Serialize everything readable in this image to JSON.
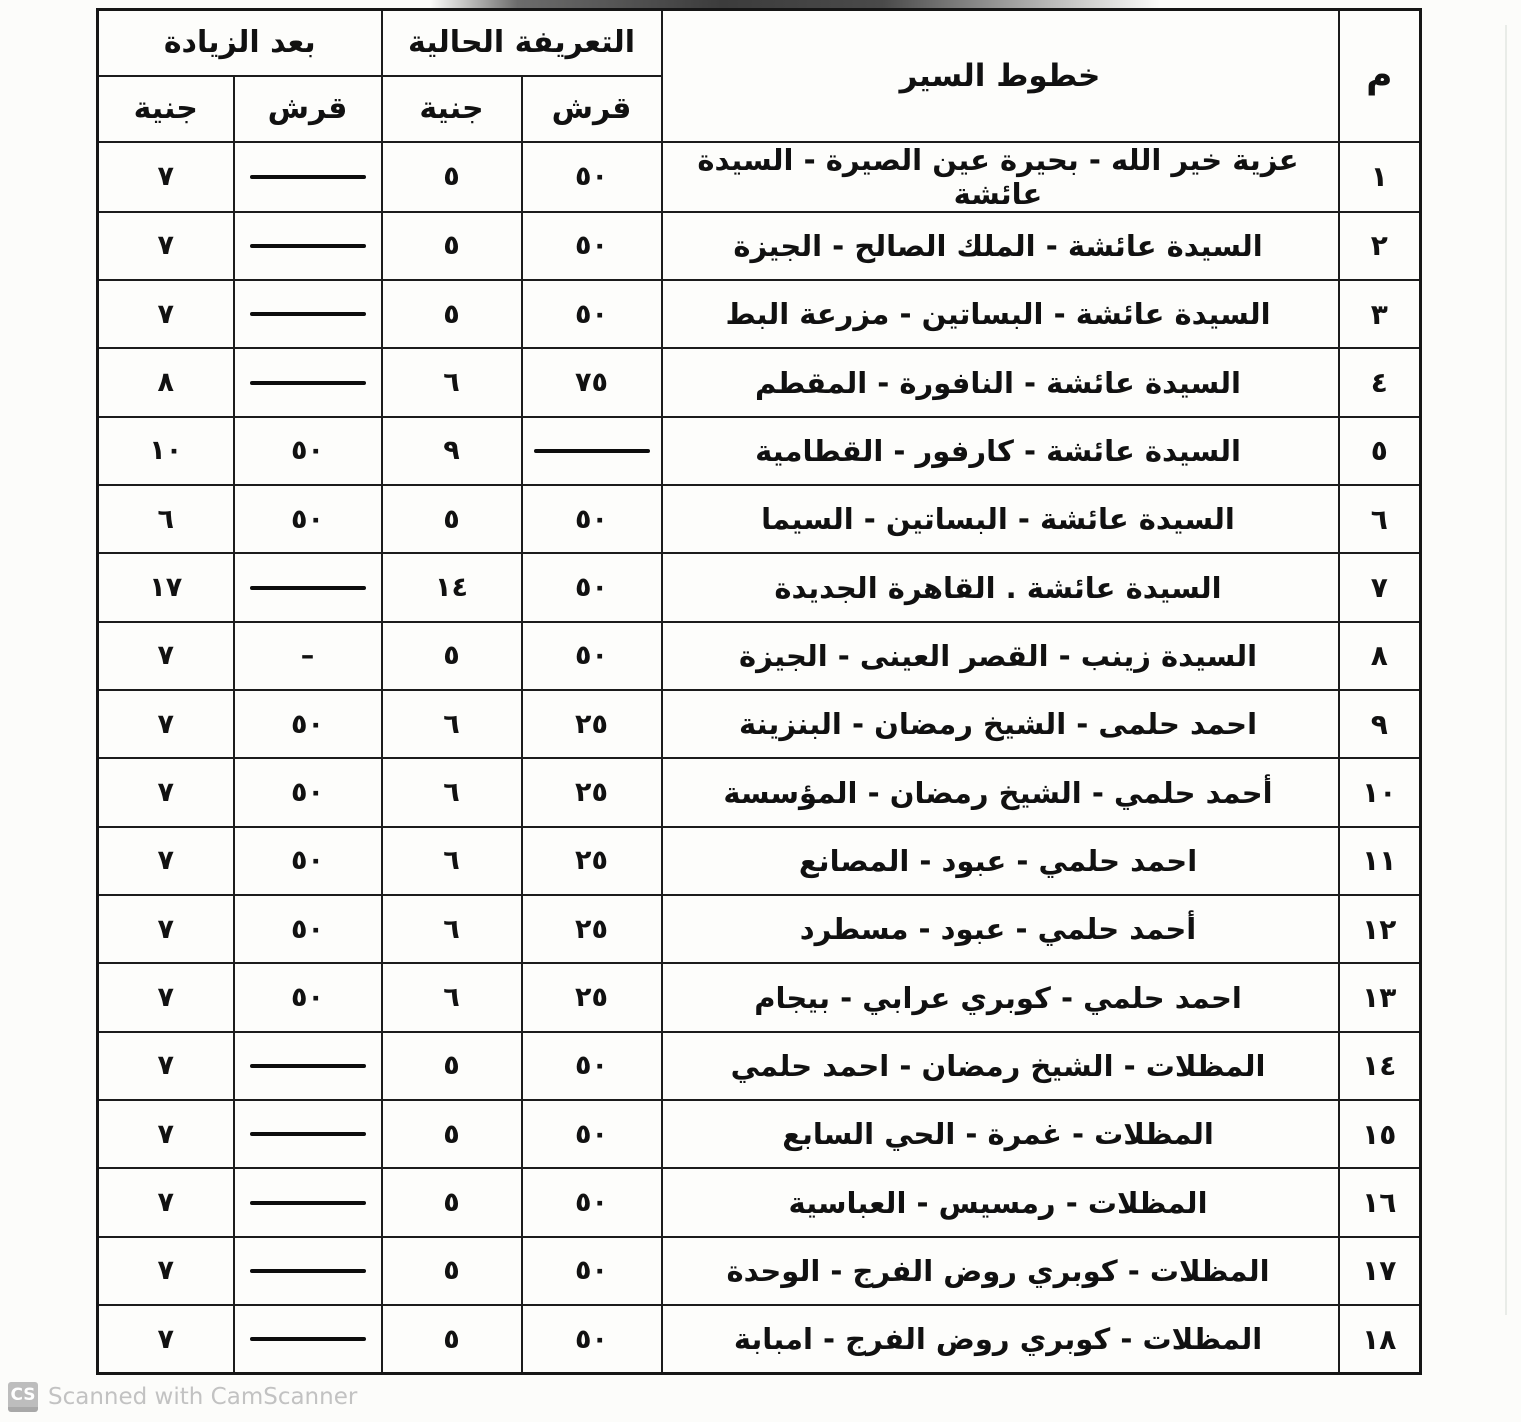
{
  "colors": {
    "border": "#1c1c1c",
    "paper": "#fcfcfa",
    "watermark_gray": "#c2c2c2"
  },
  "table": {
    "headers": {
      "index": "م",
      "routes": "خطوط السير",
      "current_tariff": "التعريفة الحالية",
      "after_increase": "بعد الزيادة",
      "qirsh": "قرش",
      "gineh": "جنية"
    },
    "rows": [
      {
        "no": "١",
        "route": "عزية خير الله - بحيرة عين الصيرة - السيدة عائشة",
        "cur_qirsh": "٥٠",
        "cur_gineh": "٥",
        "inc_qirsh": "line",
        "inc_gineh": "٧"
      },
      {
        "no": "٢",
        "route": "السيدة عائشة - الملك الصالح - الجيزة",
        "cur_qirsh": "٥٠",
        "cur_gineh": "٥",
        "inc_qirsh": "line",
        "inc_gineh": "٧"
      },
      {
        "no": "٣",
        "route": "السيدة عائشة - البساتين - مزرعة البط",
        "cur_qirsh": "٥٠",
        "cur_gineh": "٥",
        "inc_qirsh": "line",
        "inc_gineh": "٧"
      },
      {
        "no": "٤",
        "route": "السيدة عائشة - النافورة - المقطم",
        "cur_qirsh": "٧٥",
        "cur_gineh": "٦",
        "inc_qirsh": "line",
        "inc_gineh": "٨"
      },
      {
        "no": "٥",
        "route": "السيدة عائشة - كارفور - القطامية",
        "cur_qirsh": "line",
        "cur_gineh": "٩",
        "inc_qirsh": "٥٠",
        "inc_gineh": "١٠"
      },
      {
        "no": "٦",
        "route": "السيدة عائشة - البساتين - السيما",
        "cur_qirsh": "٥٠",
        "cur_gineh": "٥",
        "inc_qirsh": "٥٠",
        "inc_gineh": "٦"
      },
      {
        "no": "٧",
        "route": "السيدة عائشة . القاهرة الجديدة",
        "cur_qirsh": "٥٠",
        "cur_gineh": "١٤",
        "inc_qirsh": "line",
        "inc_gineh": "١٧"
      },
      {
        "no": "٨",
        "route": "السيدة زينب - القصر العينى - الجيزة",
        "cur_qirsh": "٥٠",
        "cur_gineh": "٥",
        "inc_qirsh": "–",
        "inc_gineh": "٧"
      },
      {
        "no": "٩",
        "route": "احمد حلمى - الشيخ رمضان - البنزينة",
        "cur_qirsh": "٢٥",
        "cur_gineh": "٦",
        "inc_qirsh": "٥٠",
        "inc_gineh": "٧"
      },
      {
        "no": "١٠",
        "route": "أحمد حلمي - الشيخ رمضان - المؤسسة",
        "cur_qirsh": "٢٥",
        "cur_gineh": "٦",
        "inc_qirsh": "٥٠",
        "inc_gineh": "٧"
      },
      {
        "no": "١١",
        "route": "احمد حلمي - عبود - المصانع",
        "cur_qirsh": "٢٥",
        "cur_gineh": "٦",
        "inc_qirsh": "٥٠",
        "inc_gineh": "٧"
      },
      {
        "no": "١٢",
        "route": "أحمد حلمي - عبود - مسطرد",
        "cur_qirsh": "٢٥",
        "cur_gineh": "٦",
        "inc_qirsh": "٥٠",
        "inc_gineh": "٧"
      },
      {
        "no": "١٣",
        "route": "احمد حلمي - كوبري عرابي - بيجام",
        "cur_qirsh": "٢٥",
        "cur_gineh": "٦",
        "inc_qirsh": "٥٠",
        "inc_gineh": "٧"
      },
      {
        "no": "١٤",
        "route": "المظلات - الشيخ رمضان - احمد حلمي",
        "cur_qirsh": "٥٠",
        "cur_gineh": "٥",
        "inc_qirsh": "line",
        "inc_gineh": "٧"
      },
      {
        "no": "١٥",
        "route": "المظلات - غمرة - الحي السابع",
        "cur_qirsh": "٥٠",
        "cur_gineh": "٥",
        "inc_qirsh": "line",
        "inc_gineh": "٧"
      },
      {
        "no": "١٦",
        "route": "المظلات - رمسيس - العباسية",
        "cur_qirsh": "٥٠",
        "cur_gineh": "٥",
        "inc_qirsh": "line",
        "inc_gineh": "٧"
      },
      {
        "no": "١٧",
        "route": "المظلات - كوبري روض الفرج - الوحدة",
        "cur_qirsh": "٥٠",
        "cur_gineh": "٥",
        "inc_qirsh": "line",
        "inc_gineh": "٧"
      },
      {
        "no": "١٨",
        "route": "المظلات - كوبري روض الفرج - امبابة",
        "cur_qirsh": "٥٠",
        "cur_gineh": "٥",
        "inc_qirsh": "line",
        "inc_gineh": "٧"
      }
    ]
  },
  "footer": {
    "badge": "CS",
    "text": "Scanned with CamScanner"
  }
}
